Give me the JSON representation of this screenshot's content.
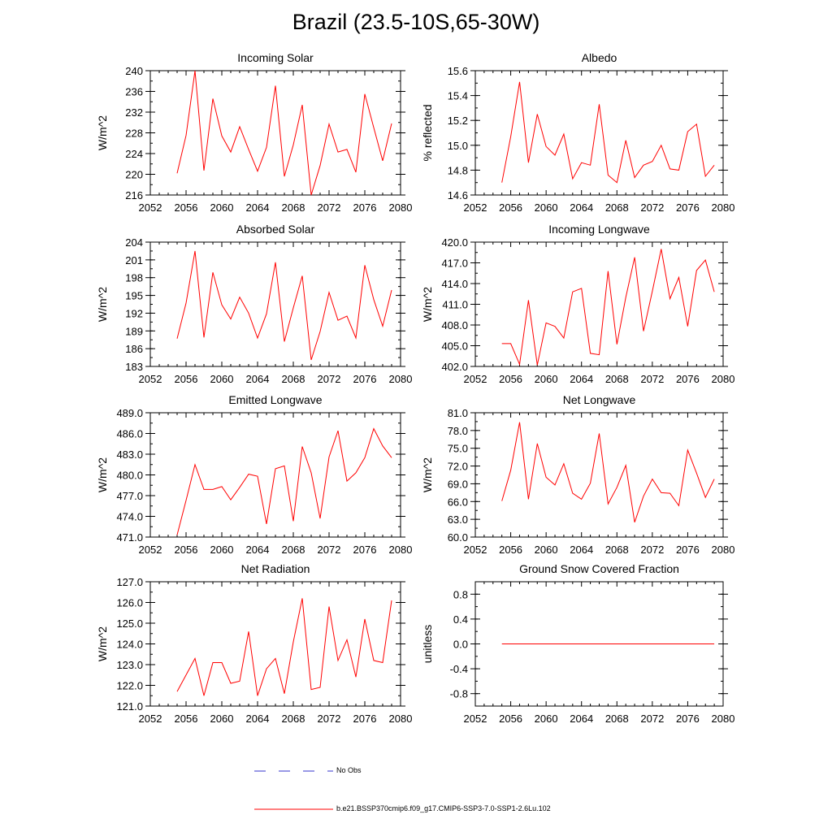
{
  "page": {
    "title": "Brazil (23.5-10S,65-30W)"
  },
  "legend": {
    "items": [
      {
        "label": "No Obs",
        "style": "dashed",
        "color": "#3333cc"
      },
      {
        "label": "b.e21.BSSP370cmip6.f09_g17.CMIP6-SSP3-7.0-SSP1-2.6Lu.102",
        "style": "solid",
        "color": "#ff0000"
      }
    ]
  },
  "chart_data": [
    {
      "type": "line",
      "title": "Incoming Solar",
      "xlabel": "",
      "ylabel": "W/m^2",
      "xlim": [
        2052,
        2080
      ],
      "ylim": [
        216,
        240
      ],
      "xticks": [
        "2052",
        "2056",
        "2060",
        "2064",
        "2068",
        "2072",
        "2076",
        "2080"
      ],
      "yticks": [
        "216",
        "220",
        "224",
        "228",
        "232",
        "236",
        "240"
      ],
      "x": [
        2055,
        2056,
        2057,
        2058,
        2059,
        2060,
        2061,
        2062,
        2063,
        2064,
        2065,
        2066,
        2067,
        2068,
        2069,
        2070,
        2071,
        2072,
        2073,
        2074,
        2075,
        2076,
        2077,
        2078,
        2079
      ],
      "series": [
        {
          "color": "#ff0000",
          "values": [
            220.2,
            227.5,
            240.0,
            220.7,
            234.6,
            227.4,
            224.3,
            229.2,
            224.8,
            220.6,
            225.2,
            237.1,
            219.6,
            225.7,
            233.4,
            216.0,
            221.7,
            229.7,
            224.3,
            224.8,
            220.4,
            235.5,
            229.0,
            222.6,
            229.8
          ]
        }
      ]
    },
    {
      "type": "line",
      "title": "Albedo",
      "xlabel": "",
      "ylabel": "% reflected",
      "xlim": [
        2052,
        2080
      ],
      "ylim": [
        14.6,
        15.6
      ],
      "xticks": [
        "2052",
        "2056",
        "2060",
        "2064",
        "2068",
        "2072",
        "2076",
        "2080"
      ],
      "yticks": [
        "14.6",
        "14.8",
        "15.0",
        "15.2",
        "15.4",
        "15.6"
      ],
      "x": [
        2055,
        2056,
        2057,
        2058,
        2059,
        2060,
        2061,
        2062,
        2063,
        2064,
        2065,
        2066,
        2067,
        2068,
        2069,
        2070,
        2071,
        2072,
        2073,
        2074,
        2075,
        2076,
        2077,
        2078,
        2079
      ],
      "series": [
        {
          "color": "#ff0000",
          "values": [
            14.7,
            15.07,
            15.51,
            14.86,
            15.25,
            14.99,
            14.92,
            15.09,
            14.73,
            14.86,
            14.84,
            15.33,
            14.76,
            14.7,
            15.04,
            14.74,
            14.84,
            14.87,
            15.0,
            14.81,
            14.8,
            15.11,
            15.17,
            14.75,
            14.84
          ]
        }
      ]
    },
    {
      "type": "line",
      "title": "Absorbed Solar",
      "xlabel": "",
      "ylabel": "W/m^2",
      "xlim": [
        2052,
        2080
      ],
      "ylim": [
        183,
        204
      ],
      "xticks": [
        "2052",
        "2056",
        "2060",
        "2064",
        "2068",
        "2072",
        "2076",
        "2080"
      ],
      "yticks": [
        "183",
        "186",
        "189",
        "192",
        "195",
        "198",
        "201",
        "204"
      ],
      "x": [
        2055,
        2056,
        2057,
        2058,
        2059,
        2060,
        2061,
        2062,
        2063,
        2064,
        2065,
        2066,
        2067,
        2068,
        2069,
        2070,
        2071,
        2072,
        2073,
        2074,
        2075,
        2076,
        2077,
        2078,
        2079
      ],
      "series": [
        {
          "color": "#ff0000",
          "values": [
            187.7,
            193.7,
            202.5,
            187.9,
            198.9,
            193.4,
            191.0,
            194.7,
            192.0,
            187.8,
            191.9,
            200.6,
            187.2,
            192.9,
            198.3,
            184.1,
            188.9,
            195.5,
            190.8,
            191.5,
            187.8,
            200.1,
            194.3,
            189.8,
            195.9
          ]
        }
      ]
    },
    {
      "type": "line",
      "title": "Incoming Longwave",
      "xlabel": "",
      "ylabel": "W/m^2",
      "xlim": [
        2052,
        2080
      ],
      "ylim": [
        402.0,
        420.0
      ],
      "xticks": [
        "2052",
        "2056",
        "2060",
        "2064",
        "2068",
        "2072",
        "2076",
        "2080"
      ],
      "yticks": [
        "402.0",
        "405.0",
        "408.0",
        "411.0",
        "414.0",
        "417.0",
        "420.0"
      ],
      "x": [
        2055,
        2056,
        2057,
        2058,
        2059,
        2060,
        2061,
        2062,
        2063,
        2064,
        2065,
        2066,
        2067,
        2068,
        2069,
        2070,
        2071,
        2072,
        2073,
        2074,
        2075,
        2076,
        2077,
        2078,
        2079
      ],
      "series": [
        {
          "color": "#ff0000",
          "values": [
            405.3,
            405.3,
            402.3,
            411.6,
            402.2,
            408.3,
            407.8,
            406.1,
            412.8,
            413.3,
            403.9,
            403.7,
            415.8,
            405.2,
            412.0,
            417.8,
            407.1,
            412.9,
            419.0,
            411.8,
            414.9,
            407.8,
            415.9,
            417.4,
            412.8
          ]
        }
      ]
    },
    {
      "type": "line",
      "title": "Emitted Longwave",
      "xlabel": "",
      "ylabel": "W/m^2",
      "xlim": [
        2052,
        2080
      ],
      "ylim": [
        471.0,
        489.0
      ],
      "xticks": [
        "2052",
        "2056",
        "2060",
        "2064",
        "2068",
        "2072",
        "2076",
        "2080"
      ],
      "yticks": [
        "471.0",
        "474.0",
        "477.0",
        "480.0",
        "483.0",
        "486.0",
        "489.0"
      ],
      "x": [
        2055,
        2056,
        2057,
        2058,
        2059,
        2060,
        2061,
        2062,
        2063,
        2064,
        2065,
        2066,
        2067,
        2068,
        2069,
        2070,
        2071,
        2072,
        2073,
        2074,
        2075,
        2076,
        2077,
        2078,
        2079
      ],
      "series": [
        {
          "color": "#ff0000",
          "values": [
            471.3,
            476.3,
            481.5,
            477.9,
            477.9,
            478.3,
            476.4,
            478.2,
            480.1,
            479.8,
            472.9,
            480.9,
            481.3,
            473.3,
            484.1,
            480.3,
            473.7,
            482.6,
            486.4,
            479.1,
            480.3,
            482.5,
            486.7,
            484.2,
            482.5
          ]
        }
      ]
    },
    {
      "type": "line",
      "title": "Net Longwave",
      "xlabel": "",
      "ylabel": "W/m^2",
      "xlim": [
        2052,
        2080
      ],
      "ylim": [
        60.0,
        81.0
      ],
      "xticks": [
        "2052",
        "2056",
        "2060",
        "2064",
        "2068",
        "2072",
        "2076",
        "2080"
      ],
      "yticks": [
        "60.0",
        "63.0",
        "66.0",
        "69.0",
        "72.0",
        "75.0",
        "78.0",
        "81.0"
      ],
      "x": [
        2055,
        2056,
        2057,
        2058,
        2059,
        2060,
        2061,
        2062,
        2063,
        2064,
        2065,
        2066,
        2067,
        2068,
        2069,
        2070,
        2071,
        2072,
        2073,
        2074,
        2075,
        2076,
        2077,
        2078,
        2079
      ],
      "series": [
        {
          "color": "#ff0000",
          "values": [
            66.1,
            71.3,
            79.4,
            66.4,
            75.8,
            70.1,
            68.8,
            72.4,
            67.4,
            66.4,
            69.1,
            77.5,
            65.6,
            68.4,
            72.1,
            62.5,
            66.9,
            69.8,
            67.5,
            67.4,
            65.3,
            74.7,
            70.8,
            66.7,
            69.8
          ]
        }
      ]
    },
    {
      "type": "line",
      "title": "Net Radiation",
      "xlabel": "",
      "ylabel": "W/m^2",
      "xlim": [
        2052,
        2080
      ],
      "ylim": [
        121.0,
        127.0
      ],
      "xticks": [
        "2052",
        "2056",
        "2060",
        "2064",
        "2068",
        "2072",
        "2076",
        "2080"
      ],
      "yticks": [
        "121.0",
        "122.0",
        "123.0",
        "124.0",
        "125.0",
        "126.0",
        "127.0"
      ],
      "x": [
        2055,
        2056,
        2057,
        2058,
        2059,
        2060,
        2061,
        2062,
        2063,
        2064,
        2065,
        2066,
        2067,
        2068,
        2069,
        2070,
        2071,
        2072,
        2073,
        2074,
        2075,
        2076,
        2077,
        2078,
        2079
      ],
      "series": [
        {
          "color": "#ff0000",
          "values": [
            121.7,
            122.5,
            123.3,
            121.5,
            123.1,
            123.1,
            122.1,
            122.2,
            124.6,
            121.5,
            122.8,
            123.3,
            121.6,
            124.1,
            126.2,
            121.8,
            121.9,
            125.8,
            123.2,
            124.2,
            122.4,
            125.2,
            123.2,
            123.1,
            126.1
          ]
        }
      ]
    },
    {
      "type": "line",
      "title": "Ground Snow Covered Fraction",
      "xlabel": "",
      "ylabel": "unitless",
      "xlim": [
        2052,
        2080
      ],
      "ylim": [
        -1.0,
        1.0
      ],
      "xticks": [
        "2052",
        "2056",
        "2060",
        "2064",
        "2068",
        "2072",
        "2076",
        "2080"
      ],
      "yticks": [
        "-0.8",
        "-0.4",
        "0.0",
        "0.4",
        "0.8"
      ],
      "x": [
        2055,
        2056,
        2057,
        2058,
        2059,
        2060,
        2061,
        2062,
        2063,
        2064,
        2065,
        2066,
        2067,
        2068,
        2069,
        2070,
        2071,
        2072,
        2073,
        2074,
        2075,
        2076,
        2077,
        2078,
        2079
      ],
      "series": [
        {
          "color": "#ff0000",
          "values": [
            0,
            0,
            0,
            0,
            0,
            0,
            0,
            0,
            0,
            0,
            0,
            0,
            0,
            0,
            0,
            0,
            0,
            0,
            0,
            0,
            0,
            0,
            0,
            0,
            0
          ]
        }
      ]
    }
  ]
}
